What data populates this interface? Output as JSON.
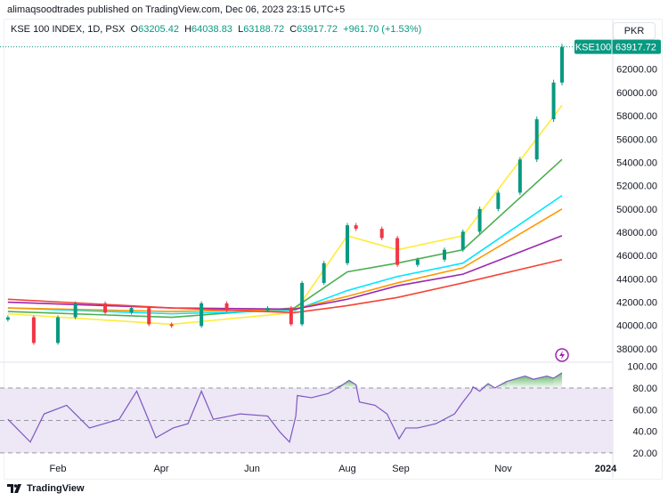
{
  "header": {
    "published": "alimaqsoodtrades published on TradingView.com, Dec 06, 2023 23:15 UTC+5"
  },
  "legend": {
    "symbol": "KSE 100 INDEX, 1D, PSX",
    "o_label": "O",
    "o": "63205.42",
    "h_label": "H",
    "h": "64038.83",
    "l_label": "L",
    "l": "63188.72",
    "c_label": "C",
    "c": "63917.72",
    "change": "+961.70 (+1.53%)"
  },
  "currency": "PKR",
  "price_tag": {
    "symbol": "KSE100",
    "value": "63917.72"
  },
  "logo": "TradingView",
  "colors": {
    "up": "#089981",
    "down": "#f23645",
    "rsi": "#7e57c2",
    "rsi_band": "#ede7f6"
  },
  "chart_data": {
    "type": "candlestick",
    "ylim": [
      37000,
      64500
    ],
    "yticks": [
      "38000.00",
      "40000.00",
      "42000.00",
      "44000.00",
      "46000.00",
      "48000.00",
      "50000.00",
      "52000.00",
      "54000.00",
      "56000.00",
      "58000.00",
      "60000.00",
      "62000.00"
    ],
    "xticks": [
      "Feb",
      "Apr",
      "Jun",
      "Aug",
      "Sep",
      "Nov",
      "2024"
    ],
    "close": [
      [
        "2023-01-03",
        40700
      ],
      [
        "2023-01-18",
        38500
      ],
      [
        "2023-02-01",
        40700
      ],
      [
        "2023-02-11",
        41900
      ],
      [
        "2023-02-28",
        41100
      ],
      [
        "2023-03-15",
        41500
      ],
      [
        "2023-03-25",
        40100
      ],
      [
        "2023-04-08",
        39950
      ],
      [
        "2023-04-28",
        41900
      ],
      [
        "2023-05-15",
        41300
      ],
      [
        "2023-06-11",
        41500
      ],
      [
        "2023-06-26",
        40100
      ],
      [
        "2023-07-03",
        43650
      ],
      [
        "2023-07-17",
        45350
      ],
      [
        "2023-08-01",
        48600
      ],
      [
        "2023-08-06",
        48300
      ],
      [
        "2023-08-21",
        47500
      ],
      [
        "2023-08-30",
        45200
      ],
      [
        "2023-09-11",
        45650
      ],
      [
        "2023-09-27",
        46500
      ],
      [
        "2023-10-08",
        48050
      ],
      [
        "2023-10-18",
        50000
      ],
      [
        "2023-10-29",
        51400
      ],
      [
        "2023-11-11",
        54250
      ],
      [
        "2023-11-21",
        57700
      ],
      [
        "2023-12-01",
        60850
      ],
      [
        "2023-12-06",
        63917.72
      ]
    ],
    "moving_averages": [
      {
        "color": "#ffeb3b",
        "values": [
          [
            "2023-01-03",
            41000
          ],
          [
            "2023-04-08",
            40100
          ],
          [
            "2023-06-28",
            41100
          ],
          [
            "2023-08-01",
            47700
          ],
          [
            "2023-08-30",
            46500
          ],
          [
            "2023-10-08",
            47700
          ],
          [
            "2023-12-06",
            58900
          ]
        ]
      },
      {
        "color": "#4caf50",
        "values": [
          [
            "2023-01-03",
            41200
          ],
          [
            "2023-04-08",
            40700
          ],
          [
            "2023-06-28",
            41500
          ],
          [
            "2023-08-01",
            44600
          ],
          [
            "2023-08-30",
            45350
          ],
          [
            "2023-10-08",
            46500
          ],
          [
            "2023-12-06",
            54250
          ]
        ]
      },
      {
        "color": "#00e5ff",
        "values": [
          [
            "2023-01-03",
            41500
          ],
          [
            "2023-04-08",
            41000
          ],
          [
            "2023-06-28",
            41300
          ],
          [
            "2023-08-01",
            43000
          ],
          [
            "2023-08-30",
            44200
          ],
          [
            "2023-10-08",
            45350
          ],
          [
            "2023-12-06",
            51150
          ]
        ]
      },
      {
        "color": "#ff9800",
        "values": [
          [
            "2023-01-03",
            41500
          ],
          [
            "2023-04-08",
            41200
          ],
          [
            "2023-06-28",
            41400
          ],
          [
            "2023-08-01",
            42500
          ],
          [
            "2023-08-30",
            43650
          ],
          [
            "2023-10-08",
            44950
          ],
          [
            "2023-12-06",
            50000
          ]
        ]
      },
      {
        "color": "#9c27b0",
        "values": [
          [
            "2023-01-03",
            42000
          ],
          [
            "2023-04-08",
            41500
          ],
          [
            "2023-06-28",
            41400
          ],
          [
            "2023-08-01",
            42250
          ],
          [
            "2023-08-30",
            43400
          ],
          [
            "2023-10-08",
            44400
          ],
          [
            "2023-12-06",
            47700
          ]
        ]
      },
      {
        "color": "#f44336",
        "values": [
          [
            "2023-01-03",
            42250
          ],
          [
            "2023-04-08",
            41500
          ],
          [
            "2023-06-28",
            41100
          ],
          [
            "2023-08-01",
            41700
          ],
          [
            "2023-08-30",
            42400
          ],
          [
            "2023-10-08",
            43650
          ],
          [
            "2023-12-06",
            45650
          ]
        ]
      }
    ],
    "rsi": {
      "ylim": [
        15,
        103
      ],
      "yticks": [
        "20.00",
        "40.00",
        "60.00",
        "80.00",
        "100.00"
      ],
      "bands": [
        20,
        50,
        80
      ],
      "values": [
        [
          "2023-01-03",
          51
        ],
        [
          "2023-01-16",
          30
        ],
        [
          "2023-01-24",
          56
        ],
        [
          "2023-02-06",
          64
        ],
        [
          "2023-02-19",
          43
        ],
        [
          "2023-03-08",
          51
        ],
        [
          "2023-03-18",
          77
        ],
        [
          "2023-03-29",
          34
        ],
        [
          "2023-04-09",
          43
        ],
        [
          "2023-04-19",
          47
        ],
        [
          "2023-04-28",
          77
        ],
        [
          "2023-05-06",
          51
        ],
        [
          "2023-05-24",
          56
        ],
        [
          "2023-06-11",
          54
        ],
        [
          "2023-06-19",
          39
        ],
        [
          "2023-06-25",
          30
        ],
        [
          "2023-06-29",
          54
        ],
        [
          "2023-06-30",
          73
        ],
        [
          "2023-07-09",
          71
        ],
        [
          "2023-07-20",
          75
        ],
        [
          "2023-07-29",
          83
        ],
        [
          "2023-08-02",
          87
        ],
        [
          "2023-08-06",
          83
        ],
        [
          "2023-08-08",
          67
        ],
        [
          "2023-08-17",
          64
        ],
        [
          "2023-08-24",
          56
        ],
        [
          "2023-08-28",
          43
        ],
        [
          "2023-08-31",
          33
        ],
        [
          "2023-09-04",
          43
        ],
        [
          "2023-09-11",
          43
        ],
        [
          "2023-09-22",
          47
        ],
        [
          "2023-10-03",
          56
        ],
        [
          "2023-10-08",
          67
        ],
        [
          "2023-10-13",
          77
        ],
        [
          "2023-10-14",
          81
        ],
        [
          "2023-10-18",
          77
        ],
        [
          "2023-10-23",
          84
        ],
        [
          "2023-10-27",
          80
        ],
        [
          "2023-11-03",
          86
        ],
        [
          "2023-11-14",
          91
        ],
        [
          "2023-11-19",
          88
        ],
        [
          "2023-11-27",
          91
        ],
        [
          "2023-12-01",
          89
        ],
        [
          "2023-12-06",
          94
        ]
      ]
    }
  }
}
